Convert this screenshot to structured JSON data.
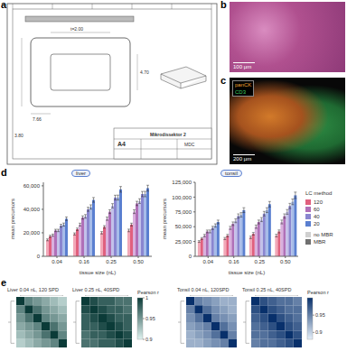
{
  "chart_data": [
    {
      "type": "bar",
      "title": "liver",
      "x_label": "tissue size (nL)",
      "y_label": "mean precursors",
      "categories": [
        "0.04",
        "0.16",
        "0.25",
        "0.50"
      ],
      "ylim": [
        0,
        63000
      ],
      "yticks": [
        0,
        {
          "value": 20000,
          "label": "20,000"
        },
        {
          "value": 40000,
          "label": "40,000"
        },
        {
          "value": 60000,
          "label": "60,000"
        }
      ],
      "grid": false,
      "legend_title": "LC method",
      "series": [
        {
          "name": "120",
          "mbr": "no MBR",
          "color": "#f2a8b8",
          "values": [
            14000,
            19000,
            20000,
            22000
          ],
          "errors": [
            800,
            900,
            1000,
            1100
          ]
        },
        {
          "name": "120",
          "mbr": "MBR",
          "color": "#e0607e",
          "values": [
            17000,
            23000,
            25000,
            27000
          ],
          "errors": [
            900,
            1000,
            1100,
            1200
          ]
        },
        {
          "name": "60",
          "mbr": "no MBR",
          "color": "#d9b0dd",
          "values": [
            18000,
            27000,
            32000,
            38000
          ],
          "errors": [
            900,
            1200,
            1400,
            1600
          ]
        },
        {
          "name": "60",
          "mbr": "MBR",
          "color": "#b070b8",
          "values": [
            22000,
            33000,
            38000,
            45000
          ],
          "errors": [
            1000,
            1400,
            1600,
            1800
          ]
        },
        {
          "name": "40",
          "mbr": "no MBR",
          "color": "#c3c1ea",
          "values": [
            22000,
            34000,
            43000,
            47000
          ],
          "errors": [
            1000,
            1500,
            1800,
            2000
          ]
        },
        {
          "name": "40",
          "mbr": "MBR",
          "color": "#8a86d0",
          "values": [
            26000,
            40000,
            50000,
            53000
          ],
          "errors": [
            1200,
            1700,
            2000,
            2200
          ]
        },
        {
          "name": "20",
          "mbr": "no MBR",
          "color": "#a7bce9",
          "values": [
            27000,
            42000,
            50000,
            53000
          ],
          "errors": [
            1300,
            1800,
            2100,
            2300
          ]
        },
        {
          "name": "20",
          "mbr": "MBR",
          "color": "#5a7fd0",
          "values": [
            32000,
            48000,
            57000,
            58000
          ],
          "errors": [
            1500,
            2000,
            2400,
            2500
          ]
        }
      ]
    },
    {
      "type": "bar",
      "title": "tonsil",
      "x_label": "tissue size (nL)",
      "y_label": "mean precursors",
      "categories": [
        "0.04",
        "0.16",
        "0.25",
        "0.50"
      ],
      "ylim": [
        0,
        125000
      ],
      "yticks": [
        0,
        {
          "value": 25000,
          "label": "25,000"
        },
        {
          "value": 50000,
          "label": "50,000"
        },
        {
          "value": 75000,
          "label": "75,000"
        },
        {
          "value": 100000,
          "label": "100,000"
        },
        {
          "value": 125000,
          "label": "125,000"
        }
      ],
      "grid": false,
      "legend_title": "LC method",
      "series": [
        {
          "name": "120",
          "mbr": "no MBR",
          "color": "#f2a8b8",
          "values": [
            25000,
            30000,
            32000,
            35000
          ],
          "errors": [
            1500,
            1800,
            2000,
            2200
          ]
        },
        {
          "name": "120",
          "mbr": "MBR",
          "color": "#e0607e",
          "values": [
            30000,
            35000,
            38000,
            42000
          ],
          "errors": [
            1700,
            2000,
            2200,
            2500
          ]
        },
        {
          "name": "60",
          "mbr": "no MBR",
          "color": "#d9b0dd",
          "values": [
            35000,
            48000,
            50000,
            58000
          ],
          "errors": [
            2000,
            2600,
            2800,
            3200
          ]
        },
        {
          "name": "60",
          "mbr": "MBR",
          "color": "#b070b8",
          "values": [
            42000,
            55000,
            58000,
            68000
          ],
          "errors": [
            2300,
            3000,
            3200,
            3600
          ]
        },
        {
          "name": "40",
          "mbr": "no MBR",
          "color": "#c3c1ea",
          "values": [
            42000,
            60000,
            62000,
            75000
          ],
          "errors": [
            2400,
            3200,
            3400,
            4000
          ]
        },
        {
          "name": "40",
          "mbr": "MBR",
          "color": "#8a86d0",
          "values": [
            48000,
            68000,
            72000,
            85000
          ],
          "errors": [
            2700,
            3600,
            3800,
            4400
          ]
        },
        {
          "name": "20",
          "mbr": "no MBR",
          "color": "#a7bce9",
          "values": [
            52000,
            70000,
            78000,
            92000
          ],
          "errors": [
            2800,
            3700,
            4100,
            4800
          ]
        },
        {
          "name": "20",
          "mbr": "MBR",
          "color": "#5a7fd0",
          "values": [
            58000,
            78000,
            88000,
            103000
          ],
          "errors": [
            3100,
            4100,
            4600,
            5400
          ]
        }
      ]
    }
  ],
  "panels": {
    "a": {
      "label": "a",
      "dimensions": [
        "t=2.00",
        "7.66",
        "4.70",
        "3.80"
      ],
      "title_block": [
        "Mikrodissektor 2",
        "A4",
        "MDC"
      ]
    },
    "b": {
      "label": "b",
      "scale_bar": "100 µm"
    },
    "c": {
      "label": "c",
      "markers": [
        {
          "name": "panCK",
          "color": "#f0a030"
        },
        {
          "name": "CD3",
          "color": "#40d060"
        }
      ],
      "scale_bar": "200 µm"
    },
    "d": {
      "label": "d"
    },
    "e": {
      "label": "e",
      "groups": [
        {
          "colorbar": {
            "label": "Pearson r",
            "range": [
              0.9,
              1
            ],
            "ticks": [
              0.9,
              0.95,
              1
            ],
            "colors": [
              "#e0f3f0",
              "#0b3b38"
            ]
          },
          "heatmaps": [
            {
              "title": "Liver 0.04 nL, 120 SPD",
              "cells": [
                [
                  1,
                  0.96,
                  0.95,
                  0.94,
                  0.93,
                  0.92
                ],
                [
                  0.96,
                  1,
                  0.97,
                  0.95,
                  0.94,
                  0.93
                ],
                [
                  0.95,
                  0.97,
                  1,
                  0.96,
                  0.95,
                  0.94
                ],
                [
                  0.94,
                  0.95,
                  0.96,
                  1,
                  0.97,
                  0.95
                ],
                [
                  0.93,
                  0.94,
                  0.95,
                  0.97,
                  1,
                  0.96
                ],
                [
                  0.92,
                  0.93,
                  0.94,
                  0.95,
                  0.96,
                  1
                ]
              ]
            },
            {
              "title": "Liver 0.25 nL, 40SPD",
              "cells": [
                [
                  1,
                  0.99,
                  0.98,
                  0.98,
                  0.97,
                  0.97
                ],
                [
                  0.99,
                  1,
                  0.99,
                  0.98,
                  0.98,
                  0.97
                ],
                [
                  0.98,
                  0.99,
                  1,
                  0.99,
                  0.98,
                  0.98
                ],
                [
                  0.98,
                  0.98,
                  0.99,
                  1,
                  0.99,
                  0.98
                ],
                [
                  0.97,
                  0.98,
                  0.98,
                  0.99,
                  1,
                  0.99
                ],
                [
                  0.97,
                  0.97,
                  0.98,
                  0.98,
                  0.99,
                  1
                ]
              ]
            }
          ]
        },
        {
          "colorbar": {
            "label": "Pearson r",
            "range": [
              0.88,
              1
            ],
            "ticks": [
              0.9,
              0.95
            ],
            "colors": [
              "#e6f0fa",
              "#08306b"
            ]
          },
          "heatmaps": [
            {
              "title": "Tonsil 0.04 nL, 120SPD",
              "cells": [
                [
                  1,
                  0.95,
                  0.94,
                  0.93,
                  0.92,
                  0.92
                ],
                [
                  0.95,
                  1,
                  0.96,
                  0.94,
                  0.93,
                  0.92
                ],
                [
                  0.94,
                  0.96,
                  1,
                  0.95,
                  0.94,
                  0.93
                ],
                [
                  0.93,
                  0.94,
                  0.95,
                  1,
                  0.96,
                  0.94
                ],
                [
                  0.92,
                  0.93,
                  0.94,
                  0.96,
                  1,
                  0.95
                ],
                [
                  0.92,
                  0.92,
                  0.93,
                  0.94,
                  0.95,
                  1
                ]
              ]
            },
            {
              "title": "Tonsil 0.25 nL, 40SPD",
              "cells": [
                [
                  1,
                  0.98,
                  0.97,
                  0.96,
                  0.96,
                  0.95
                ],
                [
                  0.98,
                  1,
                  0.98,
                  0.97,
                  0.96,
                  0.96
                ],
                [
                  0.97,
                  0.98,
                  1,
                  0.98,
                  0.97,
                  0.96
                ],
                [
                  0.96,
                  0.97,
                  0.98,
                  1,
                  0.98,
                  0.97
                ],
                [
                  0.96,
                  0.96,
                  0.97,
                  0.98,
                  1,
                  0.98
                ],
                [
                  0.95,
                  0.96,
                  0.96,
                  0.97,
                  0.98,
                  1
                ]
              ]
            }
          ]
        }
      ]
    }
  }
}
